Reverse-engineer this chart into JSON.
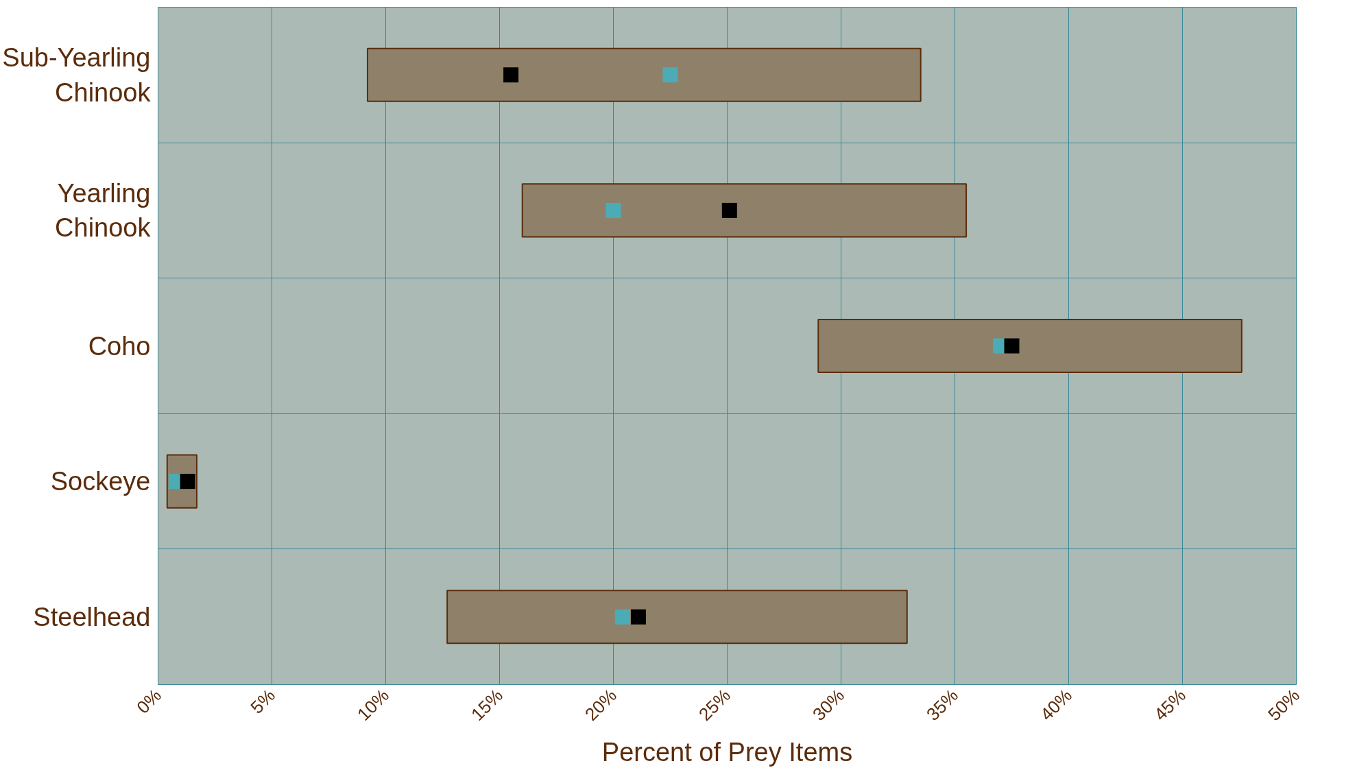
{
  "chart_data": {
    "type": "bar",
    "orientation": "horizontal",
    "xlabel": "Percent of Prey Items",
    "categories": [
      "Sub-Yearling Chinook",
      "Yearling Chinook",
      "Coho",
      "Sockeye",
      "Steelhead"
    ],
    "series": [
      {
        "color": "#8f806a",
        "values": [
          24.3,
          19.5,
          18.6,
          1.3,
          20.2
        ],
        "base": [
          9.2,
          16.0,
          29.0,
          0.4,
          12.7
        ]
      },
      {
        "type": "scatter",
        "color": "#4bacb6",
        "marker": "square",
        "values": [
          22.5,
          20.0,
          37.0,
          0.8,
          20.4
        ]
      },
      {
        "type": "scatter",
        "color": "#000000",
        "marker": "square",
        "values": [
          15.5,
          25.1,
          37.5,
          1.3,
          21.1
        ]
      }
    ],
    "xlim": [
      0,
      50
    ],
    "xticks": [
      {
        "value": 0,
        "label": "0%"
      },
      {
        "value": 5,
        "label": "5%"
      },
      {
        "value": 10,
        "label": "10%"
      },
      {
        "value": 15,
        "label": "15%"
      },
      {
        "value": 20,
        "label": "20%"
      },
      {
        "value": 25,
        "label": "25%"
      },
      {
        "value": 30,
        "label": "30%"
      },
      {
        "value": 35,
        "label": "35%"
      },
      {
        "value": 40,
        "label": "40%"
      },
      {
        "value": 45,
        "label": "45%"
      },
      {
        "value": 50,
        "label": "50%"
      }
    ],
    "grid": true
  }
}
